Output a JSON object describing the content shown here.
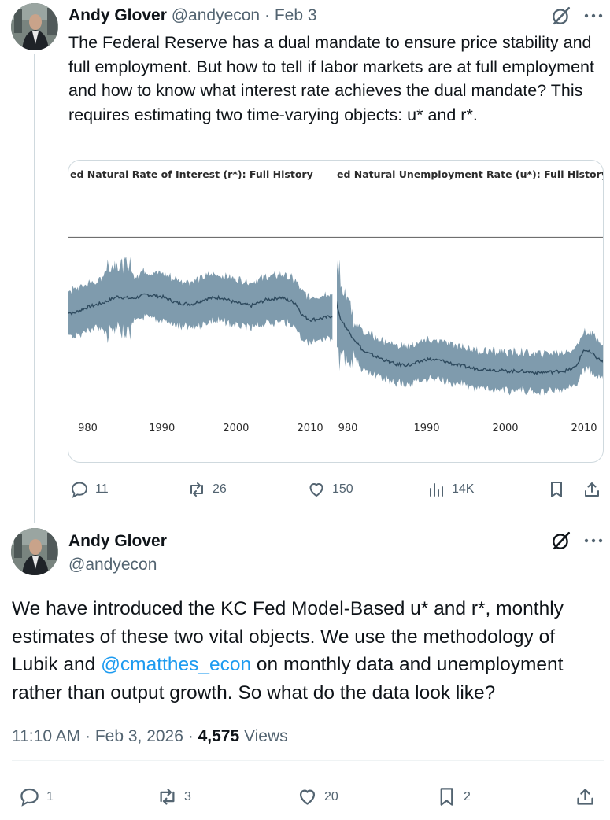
{
  "tweet1": {
    "author_name": "Andy Glover",
    "author_handle": "@andyecon",
    "separator": "·",
    "date": "Feb 3",
    "text": "The Federal Reserve has a dual mandate to ensure price stability and full employment. But how to tell if labor markets are at full employment and how to know what interest rate achieves the dual mandate? This requires estimating two time-varying objects: u* and r*.",
    "actions": {
      "replies": "11",
      "reposts": "26",
      "likes": "150",
      "views": "14K"
    }
  },
  "tweet2": {
    "author_name": "Andy Glover",
    "author_handle": "@andyecon",
    "text_before_mention": "We have introduced the KC Fed Model-Based u* and r*, monthly estimates of these two vital objects. We use the methodology of Lubik and ",
    "mention": "@cmatthes_econ",
    "text_after_mention": " on monthly data and unemployment rather than output growth. So what do the data look like?",
    "time": "11:10 AM · Feb 3, 2026 · ",
    "views_count": "4,575",
    "views_label": " Views",
    "actions": {
      "replies": "1",
      "reposts": "3",
      "likes": "20",
      "bookmarks": "2"
    }
  },
  "icons": [
    "grok-icon",
    "more-icon",
    "reply-icon",
    "repost-icon",
    "like-icon",
    "views-icon",
    "bookmark-icon",
    "share-icon"
  ],
  "colors": {
    "text": "#0f1419",
    "muted": "#536471",
    "link": "#1d9bf0",
    "band": "#7f9bad",
    "median": "#2e4a5e"
  },
  "chart_data": [
    {
      "type": "area",
      "title": "ed Natural Rate of Interest (r*): Full History",
      "x": [
        1977,
        1978,
        1980,
        1982,
        1984,
        1986,
        1988,
        1990,
        1992,
        1994,
        1996,
        1998,
        2000,
        2002,
        2004,
        2006,
        2008,
        2009,
        2010,
        2012,
        2013
      ],
      "series": [
        {
          "values": [
            0.55,
            0.5,
            0.65,
            0.75,
            0.9,
            0.85,
            0.95,
            0.9,
            0.75,
            0.72,
            0.85,
            0.88,
            0.75,
            0.68,
            0.82,
            0.88,
            0.75,
            0.45,
            0.35,
            0.4,
            0.45
          ]
        }
      ],
      "band_width": 0.55,
      "xticks": [
        "980",
        "1990",
        "2000",
        "2010"
      ],
      "reference_line": 2.3,
      "ylim": [
        -1.8,
        3.0
      ]
    },
    {
      "type": "area",
      "title": "ed Natural Unemployment Rate (u*): Full History",
      "x": [
        1977,
        1977.5,
        1978,
        1979,
        1980,
        1982,
        1984,
        1986,
        1988,
        1990,
        1992,
        1994,
        1996,
        1998,
        2000,
        2002,
        2004,
        2006,
        2008,
        2009,
        2010,
        2011,
        2012,
        2013
      ],
      "series": [
        {
          "values": [
            2.1,
            0.8,
            1.2,
            0.4,
            0.1,
            -0.4,
            -0.55,
            -0.7,
            -0.72,
            -0.58,
            -0.62,
            -0.72,
            -0.8,
            -0.82,
            -0.86,
            -0.86,
            -0.9,
            -0.88,
            -0.84,
            -0.76,
            -0.35,
            -0.45,
            -0.6,
            -0.72
          ]
        }
      ],
      "band_width": 0.45,
      "xticks": [
        "980",
        "1990",
        "2000",
        "2010"
      ],
      "reference_line": 2.3,
      "ylim": [
        -1.8,
        3.0
      ]
    }
  ]
}
